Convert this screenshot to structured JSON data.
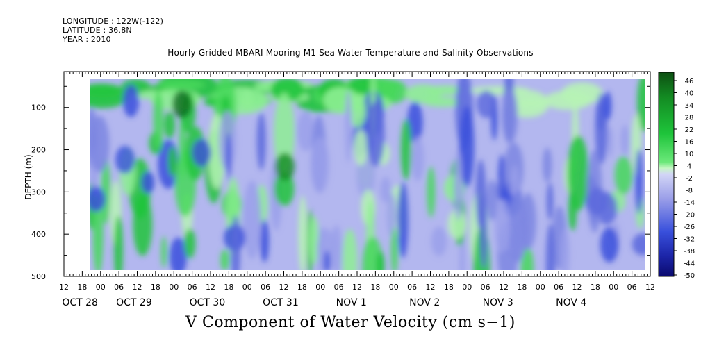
{
  "header": {
    "longitude": "LONGITUDE : 122W(-122)",
    "latitude": "LATITUDE : 36.8N",
    "year": "YEAR : 2010"
  },
  "chart_data": {
    "type": "heatmap",
    "title": "Hourly Gridded MBARI Mooring M1 Sea Water Temperature and Salinity Observations",
    "xlabel": "",
    "ylabel": "DEPTH (m)",
    "caption": "V Component of Water Velocity (cm s−1)",
    "x_tick_labels": [
      "12",
      "18",
      "00",
      "06",
      "12",
      "18",
      "00",
      "06",
      "12",
      "18",
      "00",
      "06",
      "12",
      "18",
      "00",
      "06",
      "12",
      "18",
      "00",
      "06",
      "12",
      "18",
      "00",
      "06",
      "12",
      "18",
      "00",
      "06",
      "12",
      "18",
      "00",
      "06",
      "12"
    ],
    "x_day_labels": [
      "OCT 28",
      "OCT 29",
      "OCT 30",
      "OCT 31",
      "NOV  1",
      "NOV  2",
      "NOV  3",
      "NOV  4"
    ],
    "y_tick_labels": [
      "100",
      "200",
      "300",
      "400",
      "500"
    ],
    "ylim": [
      500,
      15
    ],
    "colorbar_labels": [
      "46",
      "40",
      "34",
      "28",
      "22",
      "16",
      "10",
      "4",
      "-2",
      "-8",
      "-14",
      "-20",
      "-26",
      "-32",
      "-38",
      "-44",
      "-50"
    ],
    "colorbar_range": [
      -50,
      50
    ],
    "colors": {
      "strong_positive": "#0d4f12",
      "positive": "#1ec43a",
      "weak_positive": "#9ff2a0",
      "neutral": "#c8cdf5",
      "weak_negative": "#a9acec",
      "negative": "#3950dc",
      "strong_negative": "#0a0a6e"
    },
    "depth_profile_bands": [
      {
        "depth": [
          20,
          45
        ],
        "value": 26
      },
      {
        "depth": [
          45,
          150
        ],
        "value": 10
      },
      {
        "depth": [
          150,
          490
        ],
        "value": -6
      }
    ]
  }
}
